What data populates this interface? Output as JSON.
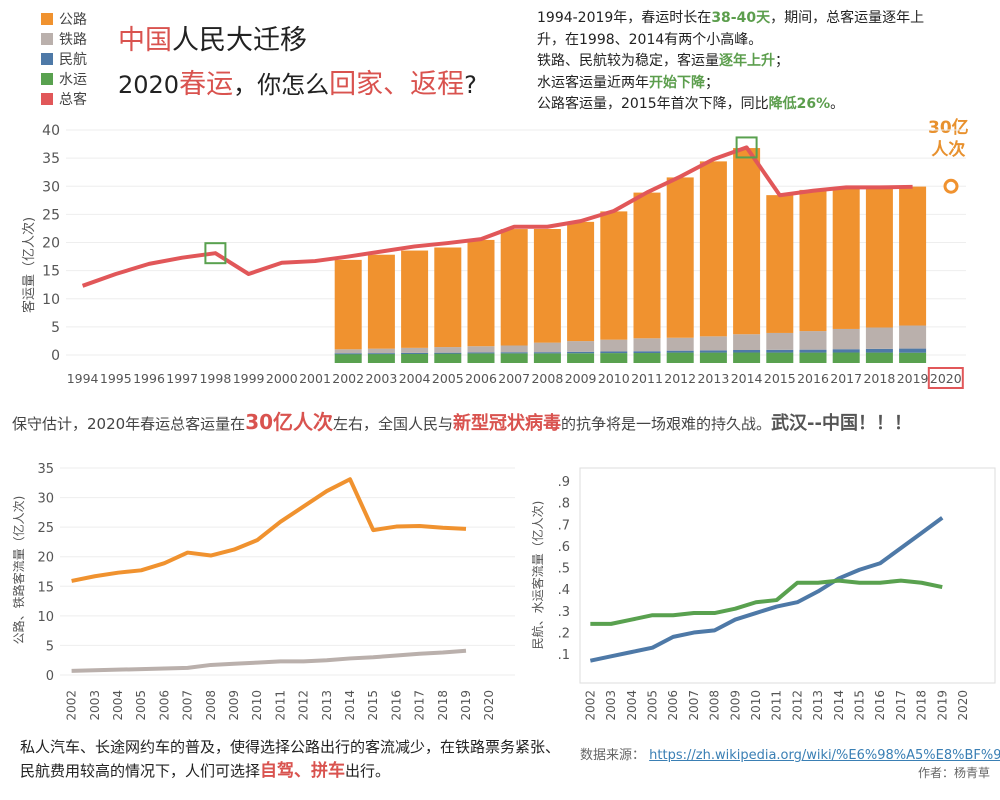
{
  "legend": [
    {
      "label": "公路",
      "color": "#f0922f"
    },
    {
      "label": "铁路",
      "color": "#bab0ac"
    },
    {
      "label": "民航",
      "color": "#4e79a7"
    },
    {
      "label": "水运",
      "color": "#59a14f"
    },
    {
      "label": "总客",
      "color": "#e15759"
    }
  ],
  "title": {
    "line1_a": "中国",
    "line1_b": "人民大迁移",
    "line2_a": "2020",
    "line2_b": "春运",
    "line2_c": "，你怎么",
    "line2_d": "回家、返程",
    "line2_e": "?"
  },
  "summary": {
    "l1_a": "1994-2019年，春运时长在",
    "l1_b": "38-40天",
    "l1_c": "，期间，总客运量逐年上",
    "l2": "升，在1998、2014有两个小高峰。",
    "l3_a": "铁路、民航较为稳定，客运量",
    "l3_b": "逐年上升",
    "l3_c": "；",
    "l4_a": "水运客运量近两年",
    "l4_b": "开始下降",
    "l4_c": "；",
    "l5_a": "公路客运量，2015年首次下降，同比",
    "l5_b": "降低26%",
    "l5_c": "。"
  },
  "annotation_2020": {
    "line1": "30亿",
    "line2": "人次"
  },
  "mid_text": {
    "a": "保守估计，2020年春运总客运量在",
    "b": "30亿人次",
    "c": "左右，全国人民与",
    "d": "新型冠状病毒",
    "e": "的抗争将是一场艰难的持久战。",
    "f": "武汉--中国！！！"
  },
  "bottom_text": {
    "a": "私人汽车、长途网约车的普及，使得选择公路出行的客流减少，在铁路票务紧张、民航费用较高的情况下，人们可选择",
    "b": "自驾、拼车",
    "c": "出行。"
  },
  "source": {
    "label": "数据来源：",
    "url": "https://zh.wikipedia.org/wiki/%E6%98%A5%E8%BF%90"
  },
  "author": "作者：杨青草",
  "chart_data": [
    {
      "type": "bar+line",
      "ylabel": "客运量（亿人次)",
      "ylim": [
        0,
        40
      ],
      "yticks": [
        0,
        5,
        10,
        15,
        20,
        25,
        30,
        35,
        40
      ],
      "categories": [
        "1994",
        "1995",
        "1996",
        "1997",
        "1998",
        "1999",
        "2000",
        "2001",
        "2002",
        "2003",
        "2004",
        "2005",
        "2006",
        "2007",
        "2008",
        "2009",
        "2010",
        "2011",
        "2012",
        "2013",
        "2014",
        "2015",
        "2016",
        "2017",
        "2018",
        "2019",
        "2020"
      ],
      "stacked_series": [
        {
          "name": "水运",
          "color": "#59a14f",
          "values": [
            null,
            null,
            null,
            null,
            null,
            null,
            null,
            null,
            0.24,
            0.24,
            0.26,
            0.28,
            0.28,
            0.29,
            0.29,
            0.31,
            0.34,
            0.35,
            0.43,
            0.43,
            0.44,
            0.43,
            0.43,
            0.44,
            0.43,
            0.41,
            null
          ]
        },
        {
          "name": "民航",
          "color": "#4e79a7",
          "values": [
            null,
            null,
            null,
            null,
            null,
            null,
            null,
            null,
            0.07,
            0.09,
            0.11,
            0.13,
            0.18,
            0.2,
            0.21,
            0.26,
            0.29,
            0.32,
            0.34,
            0.39,
            0.45,
            0.49,
            0.52,
            0.59,
            0.66,
            0.73,
            null
          ]
        },
        {
          "name": "铁路",
          "color": "#bab0ac",
          "values": [
            null,
            null,
            null,
            null,
            null,
            null,
            null,
            null,
            0.7,
            0.8,
            0.9,
            1.0,
            1.1,
            1.2,
            1.7,
            1.9,
            2.1,
            2.3,
            2.3,
            2.5,
            2.8,
            3.0,
            3.3,
            3.6,
            3.8,
            4.1,
            null
          ]
        },
        {
          "name": "公路",
          "color": "#f0922f",
          "values": [
            null,
            null,
            null,
            null,
            null,
            null,
            null,
            null,
            15.9,
            16.7,
            17.3,
            17.7,
            18.9,
            20.7,
            20.2,
            21.2,
            22.8,
            25.9,
            28.5,
            31.1,
            33.1,
            24.5,
            25.1,
            25.2,
            24.9,
            24.7,
            null
          ]
        }
      ],
      "line_series": {
        "name": "总客",
        "color": "#e15759",
        "values": [
          12.3,
          14.4,
          16.2,
          17.3,
          18.1,
          14.4,
          16.4,
          16.7,
          17.5,
          18.4,
          19.3,
          19.9,
          20.6,
          22.8,
          22.8,
          23.8,
          25.6,
          28.9,
          31.7,
          34.8,
          36.9,
          28.4,
          29.2,
          29.8,
          29.8,
          29.9,
          null
        ]
      },
      "annotations": [
        "1998",
        "2014",
        "2020: 30亿人次"
      ]
    },
    {
      "type": "line",
      "ylabel": "公路、铁路客流量（亿人次)",
      "ylim": [
        0,
        35
      ],
      "yticks": [
        0,
        5,
        10,
        15,
        20,
        25,
        30,
        35
      ],
      "categories": [
        "2002",
        "2003",
        "2004",
        "2005",
        "2006",
        "2007",
        "2008",
        "2009",
        "2010",
        "2011",
        "2012",
        "2013",
        "2014",
        "2015",
        "2016",
        "2017",
        "2018",
        "2019",
        "2020"
      ],
      "series": [
        {
          "name": "公路",
          "color": "#f0922f",
          "values": [
            15.9,
            16.7,
            17.3,
            17.7,
            18.9,
            20.7,
            20.2,
            21.2,
            22.8,
            25.9,
            28.5,
            31.1,
            33.1,
            24.5,
            25.1,
            25.2,
            24.9,
            24.7,
            null
          ]
        },
        {
          "name": "铁路",
          "color": "#bab0ac",
          "values": [
            0.7,
            0.8,
            0.9,
            1.0,
            1.1,
            1.2,
            1.7,
            1.9,
            2.1,
            2.3,
            2.3,
            2.5,
            2.8,
            3.0,
            3.3,
            3.6,
            3.8,
            4.1,
            null
          ]
        }
      ]
    },
    {
      "type": "line",
      "ylabel": "民航、水运客流量（亿人次)",
      "ylim": [
        0.05,
        0.9
      ],
      "yticks": [
        ".1",
        ".2",
        ".3",
        ".4",
        ".5",
        ".6",
        ".7",
        ".8",
        ".9"
      ],
      "categories": [
        "2002",
        "2003",
        "2004",
        "2005",
        "2006",
        "2007",
        "2008",
        "2009",
        "2010",
        "2011",
        "2012",
        "2013",
        "2014",
        "2015",
        "2016",
        "2017",
        "2018",
        "2019",
        "2020"
      ],
      "series": [
        {
          "name": "民航",
          "color": "#4e79a7",
          "values": [
            0.07,
            0.09,
            0.11,
            0.13,
            0.18,
            0.2,
            0.21,
            0.26,
            0.29,
            0.32,
            0.34,
            0.39,
            0.45,
            0.49,
            0.52,
            0.59,
            0.66,
            0.73,
            null
          ]
        },
        {
          "name": "水运",
          "color": "#59a14f",
          "values": [
            0.24,
            0.24,
            0.26,
            0.28,
            0.28,
            0.29,
            0.29,
            0.31,
            0.34,
            0.35,
            0.43,
            0.43,
            0.44,
            0.43,
            0.43,
            0.44,
            0.43,
            0.41,
            null
          ]
        }
      ]
    }
  ]
}
